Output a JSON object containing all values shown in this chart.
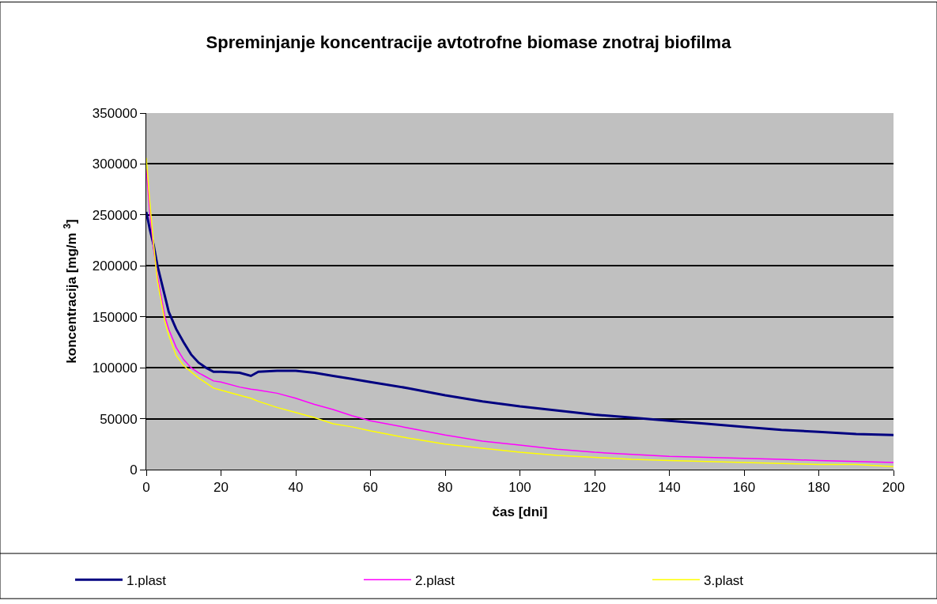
{
  "chart_data": {
    "type": "line",
    "title": "Spreminjanje koncentracije avtotrofne biomase znotraj biofilma",
    "xlabel": "čas [dni]",
    "ylabel": "koncentracija [mg/m $^{3}$]",
    "xlim": [
      0,
      200
    ],
    "xticks": [
      0,
      20,
      40,
      60,
      80,
      100,
      120,
      140,
      160,
      180,
      200
    ],
    "ylim": [
      0,
      350000
    ],
    "yticks": [
      0,
      50000,
      100000,
      150000,
      200000,
      250000,
      300000,
      350000
    ],
    "grid": "y",
    "legend": "bottom",
    "marker": "none",
    "line_style": "solid",
    "x": [
      0,
      1,
      2,
      3,
      4,
      5,
      6,
      8,
      10,
      12,
      14,
      16,
      18,
      20,
      25,
      28,
      30,
      35,
      40,
      45,
      50,
      55,
      60,
      70,
      80,
      90,
      100,
      110,
      120,
      130,
      140,
      150,
      160,
      170,
      180,
      190,
      200
    ],
    "series": [
      {
        "name": "1.plast",
        "color": "#000080",
        "values": [
          253000,
          235000,
          220000,
          200000,
          185000,
          170000,
          155000,
          138000,
          125000,
          113000,
          105000,
          100000,
          96000,
          96000,
          95000,
          92000,
          96000,
          97000,
          97000,
          95000,
          92000,
          89000,
          86000,
          80000,
          73000,
          67000,
          62000,
          58000,
          54000,
          51000,
          48000,
          45000,
          42000,
          39000,
          37000,
          35000,
          34000
        ]
      },
      {
        "name": "2.plast",
        "color": "#ff00ff",
        "values": [
          295000,
          250000,
          215000,
          190000,
          170000,
          150000,
          138000,
          120000,
          108000,
          100000,
          95000,
          91000,
          87000,
          86000,
          81000,
          79000,
          78000,
          75000,
          70000,
          64000,
          59000,
          53000,
          48000,
          41000,
          34000,
          28000,
          24000,
          20000,
          17000,
          15000,
          13000,
          12000,
          11000,
          10000,
          9000,
          8000,
          7000
        ]
      },
      {
        "name": "3.plast",
        "color": "#ffff00",
        "values": [
          306000,
          260000,
          220000,
          185000,
          165000,
          145000,
          132000,
          112000,
          102000,
          96000,
          90000,
          85000,
          80000,
          78000,
          73000,
          70000,
          67000,
          61000,
          56000,
          51000,
          45000,
          42000,
          38000,
          31000,
          25000,
          21000,
          17000,
          14000,
          12000,
          10000,
          9000,
          8000,
          7000,
          6000,
          5000,
          5000,
          3000
        ]
      }
    ]
  }
}
